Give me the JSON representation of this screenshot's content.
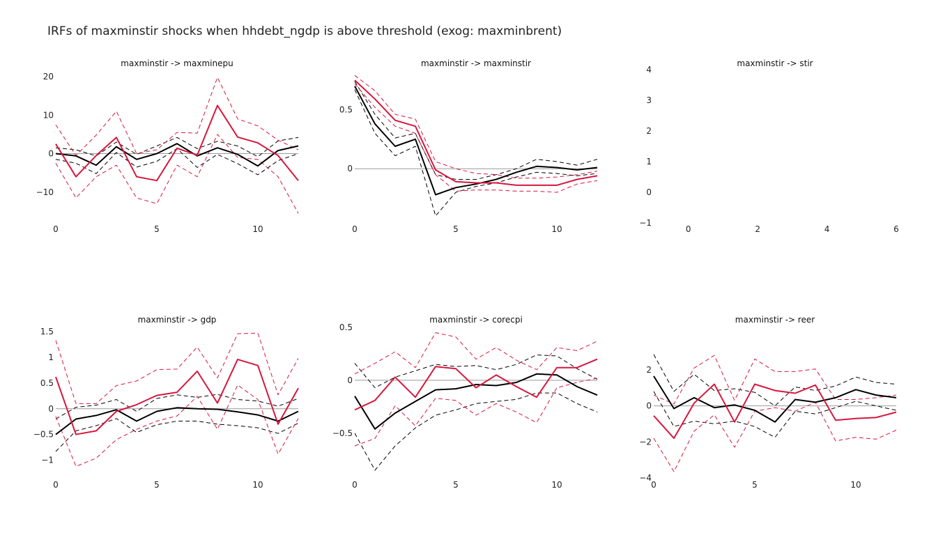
{
  "title": "IRFs of maxminstir shocks when hhdebt_ngdp is above threshold (exog: maxminbrent)",
  "colors": {
    "below": "#000000",
    "above": "#d6173d",
    "zero": "#999999"
  },
  "chart_data": [
    {
      "type": "line",
      "title": "maxminstir -> maxminepu",
      "x": [
        0,
        1,
        2,
        3,
        4,
        5,
        6,
        7,
        8,
        9,
        10,
        11,
        12
      ],
      "xticks": [
        0,
        5,
        10
      ],
      "xlim": [
        0,
        12
      ],
      "yticks": [
        -10,
        0,
        10,
        20
      ],
      "ylim": [
        -18,
        20
      ],
      "series": [
        {
          "role": "black-lower",
          "style": "dash",
          "values": [
            -1.5,
            -2.5,
            -5.2,
            0.3,
            -3.5,
            -2,
            1.3,
            -3.6,
            -0.2,
            -2.6,
            -5.5,
            -1.8,
            0
          ]
        },
        {
          "role": "black-upper",
          "style": "dash",
          "values": [
            1.5,
            1,
            -0.6,
            3,
            -0.2,
            2,
            4.2,
            1.3,
            3.2,
            2,
            -0.8,
            3.3,
            4.2
          ]
        },
        {
          "role": "red-lower",
          "style": "dash",
          "values": [
            -2.5,
            -11.5,
            -6,
            -3,
            -11.5,
            -13,
            -3,
            -6,
            5,
            -1,
            -1.5,
            -6,
            -15.5
          ]
        },
        {
          "role": "red-upper",
          "style": "dash",
          "values": [
            7.5,
            -0.5,
            4.8,
            11,
            0,
            1,
            5.5,
            5.3,
            19.8,
            9,
            7.2,
            3.5,
            1
          ]
        },
        {
          "role": "black-mean",
          "style": "solid",
          "values": [
            0,
            -0.6,
            -3,
            1.8,
            -1.5,
            0,
            2.6,
            -0.6,
            1.5,
            -0.2,
            -3.2,
            0.8,
            2
          ]
        },
        {
          "role": "red-mean",
          "style": "solid",
          "values": [
            2.5,
            -6,
            -0.5,
            4.2,
            -6,
            -7,
            1.4,
            -0.4,
            12.5,
            4.3,
            2.8,
            -0.5,
            -7
          ]
        }
      ]
    },
    {
      "type": "line",
      "title": "maxminstir -> maxminstir",
      "x": [
        0,
        1,
        2,
        3,
        4,
        5,
        6,
        7,
        8,
        9,
        10,
        11,
        12
      ],
      "xticks": [
        0,
        5,
        10
      ],
      "xlim": [
        0,
        12
      ],
      "yticks": [
        0,
        0.5
      ],
      "ylim": [
        -0.4,
        0.78
      ],
      "series": [
        {
          "role": "black-lower",
          "style": "dash",
          "values": [
            0.67,
            0.3,
            0.11,
            0.19,
            -0.4,
            -0.2,
            -0.15,
            -0.12,
            -0.07,
            -0.03,
            -0.04,
            -0.06,
            -0.04
          ]
        },
        {
          "role": "black-upper",
          "style": "dash",
          "values": [
            0.74,
            0.46,
            0.26,
            0.3,
            -0.05,
            -0.09,
            -0.09,
            -0.05,
            0,
            0.08,
            0.06,
            0.03,
            0.08
          ]
        },
        {
          "role": "red-lower",
          "style": "dash",
          "values": [
            0.72,
            0.52,
            0.36,
            0.3,
            -0.05,
            -0.19,
            -0.18,
            -0.18,
            -0.19,
            -0.19,
            -0.2,
            -0.13,
            -0.1
          ]
        },
        {
          "role": "red-upper",
          "style": "dash",
          "values": [
            0.79,
            0.66,
            0.46,
            0.42,
            0.06,
            0,
            -0.04,
            -0.05,
            -0.08,
            -0.08,
            -0.07,
            -0.05,
            -0.02
          ]
        },
        {
          "role": "black-mean",
          "style": "solid",
          "values": [
            0.7,
            0.38,
            0.19,
            0.25,
            -0.22,
            -0.16,
            -0.13,
            -0.09,
            -0.03,
            0.02,
            0.01,
            -0.01,
            0.01
          ]
        },
        {
          "role": "red-mean",
          "style": "solid",
          "values": [
            0.75,
            0.59,
            0.41,
            0.36,
            -0.01,
            -0.11,
            -0.12,
            -0.12,
            -0.14,
            -0.14,
            -0.14,
            -0.09,
            -0.06
          ]
        }
      ]
    },
    {
      "type": "line",
      "title": "maxminstir -> stir",
      "x": [],
      "xticks": [
        0,
        2,
        4,
        6
      ],
      "xlim": [
        -1,
        6
      ],
      "yticks": [
        -1,
        0,
        1,
        2,
        3,
        4
      ],
      "ylim": [
        -1,
        4
      ],
      "series": []
    },
    {
      "type": "line",
      "title": "maxminstir -> gdp",
      "x": [
        0,
        1,
        2,
        3,
        4,
        5,
        6,
        7,
        8,
        9,
        10,
        11,
        12
      ],
      "xticks": [
        0,
        5,
        10
      ],
      "xlim": [
        0,
        12
      ],
      "yticks": [
        -1,
        -0.5,
        0,
        0.5,
        1,
        1.5
      ],
      "ylim": [
        -1.1,
        1.5
      ],
      "series": [
        {
          "role": "black-lower",
          "style": "dash",
          "values": [
            -0.83,
            -0.43,
            -0.33,
            -0.19,
            -0.46,
            -0.31,
            -0.24,
            -0.24,
            -0.3,
            -0.33,
            -0.37,
            -0.48,
            -0.28
          ]
        },
        {
          "role": "black-upper",
          "style": "dash",
          "values": [
            -0.2,
            0.03,
            0.07,
            0.18,
            -0.05,
            0.2,
            0.27,
            0.22,
            0.28,
            0.18,
            0.15,
            0.05,
            0.2
          ]
        },
        {
          "role": "red-lower",
          "style": "dash",
          "values": [
            -0.15,
            -1.12,
            -0.96,
            -0.6,
            -0.4,
            -0.24,
            -0.14,
            0.24,
            -0.4,
            0.46,
            0.18,
            -0.88,
            -0.19
          ]
        },
        {
          "role": "red-upper",
          "style": "dash",
          "values": [
            1.33,
            0.1,
            0.1,
            0.45,
            0.54,
            0.76,
            0.77,
            1.2,
            0.6,
            1.46,
            1.47,
            0.27,
            0.98
          ]
        },
        {
          "role": "black-mean",
          "style": "solid",
          "values": [
            -0.5,
            -0.2,
            -0.13,
            -0.02,
            -0.24,
            -0.05,
            0.02,
            0,
            -0.01,
            -0.06,
            -0.12,
            -0.24,
            -0.05
          ]
        },
        {
          "role": "red-mean",
          "style": "solid",
          "values": [
            0.62,
            -0.5,
            -0.43,
            -0.05,
            0.08,
            0.26,
            0.32,
            0.73,
            0.11,
            0.96,
            0.84,
            -0.3,
            0.4
          ]
        }
      ]
    },
    {
      "type": "line",
      "title": "maxminstir -> corecpi",
      "x": [
        0,
        1,
        2,
        3,
        4,
        5,
        6,
        7,
        8,
        9,
        10,
        11,
        12
      ],
      "xticks": [
        0,
        5,
        10
      ],
      "xlim": [
        0,
        12
      ],
      "yticks": [
        -0.5,
        0,
        0.5
      ],
      "ylim": [
        -0.85,
        0.5
      ],
      "series": [
        {
          "role": "black-lower",
          "style": "dash",
          "values": [
            -0.5,
            -0.85,
            -0.62,
            -0.45,
            -0.33,
            -0.28,
            -0.22,
            -0.2,
            -0.18,
            -0.12,
            -0.12,
            -0.22,
            -0.3
          ]
        },
        {
          "role": "black-upper",
          "style": "dash",
          "values": [
            0.16,
            -0.07,
            0.03,
            0.09,
            0.15,
            0.13,
            0.14,
            0.1,
            0.15,
            0.24,
            0.23,
            0.11,
            0.01
          ]
        },
        {
          "role": "red-lower",
          "style": "dash",
          "values": [
            -0.62,
            -0.55,
            -0.24,
            -0.43,
            -0.17,
            -0.19,
            -0.33,
            -0.22,
            -0.3,
            -0.4,
            -0.07,
            -0.02,
            0.02
          ]
        },
        {
          "role": "red-upper",
          "style": "dash",
          "values": [
            0.06,
            0.16,
            0.27,
            0.12,
            0.45,
            0.41,
            0.2,
            0.31,
            0.19,
            0.1,
            0.31,
            0.28,
            0.37
          ]
        },
        {
          "role": "black-mean",
          "style": "solid",
          "values": [
            -0.15,
            -0.46,
            -0.31,
            -0.2,
            -0.09,
            -0.08,
            -0.04,
            -0.05,
            -0.02,
            0.06,
            0.05,
            -0.06,
            -0.14
          ]
        },
        {
          "role": "red-mean",
          "style": "solid",
          "values": [
            -0.28,
            -0.19,
            0.03,
            -0.16,
            0.13,
            0.11,
            -0.07,
            0.05,
            -0.06,
            -0.16,
            0.12,
            0.12,
            0.2
          ]
        }
      ]
    },
    {
      "type": "line",
      "title": "maxminstir -> reer",
      "x": [
        0,
        1,
        2,
        3,
        4,
        5,
        6,
        7,
        8,
        9,
        10,
        11,
        12
      ],
      "xticks": [
        0,
        5,
        10
      ],
      "xlim": [
        0,
        12
      ],
      "yticks": [
        -4,
        -2,
        0,
        2
      ],
      "ylim": [
        -4,
        3
      ],
      "series": [
        {
          "role": "black-lower",
          "style": "dash",
          "values": [
            0.8,
            -1.15,
            -0.85,
            -1,
            -0.85,
            -1.15,
            -1.75,
            -0.3,
            -0.45,
            -0.1,
            0.25,
            0,
            -0.25
          ]
        },
        {
          "role": "black-upper",
          "style": "dash",
          "values": [
            2.85,
            0.8,
            1.75,
            0.85,
            0.95,
            0.75,
            0,
            1.05,
            0.85,
            1.1,
            1.6,
            1.3,
            1.2
          ]
        },
        {
          "role": "red-lower",
          "style": "dash",
          "values": [
            -1.8,
            -3.65,
            -1.4,
            -0.5,
            -2.3,
            -0.3,
            -0.1,
            -0.3,
            0.2,
            -1.95,
            -1.75,
            -1.85,
            -1.35
          ]
        },
        {
          "role": "red-upper",
          "style": "dash",
          "values": [
            0.6,
            0.1,
            2.1,
            2.8,
            0.3,
            2.6,
            1.9,
            1.9,
            2.05,
            0.35,
            0.35,
            0.45,
            0.6
          ]
        },
        {
          "role": "black-mean",
          "style": "solid",
          "values": [
            1.65,
            -0.15,
            0.45,
            -0.1,
            0.05,
            -0.25,
            -0.9,
            0.35,
            0.2,
            0.45,
            0.9,
            0.6,
            0.45
          ]
        },
        {
          "role": "red-mean",
          "style": "solid",
          "values": [
            -0.55,
            -1.8,
            0.15,
            1.2,
            -0.9,
            1.2,
            0.85,
            0.7,
            1.15,
            -0.8,
            -0.7,
            -0.65,
            -0.35
          ]
        }
      ]
    }
  ]
}
